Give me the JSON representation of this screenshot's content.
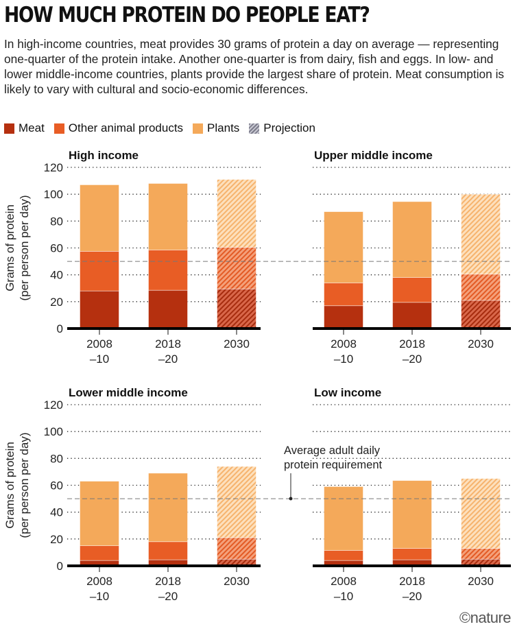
{
  "title": "HOW MUCH PROTEIN DO PEOPLE EAT?",
  "subtitle": "In high-income countries, meat provides 30 grams of protein a day on average — representing one-quarter of the protein intake. Another one-quarter is from dairy, fish and eggs. In low- and lower middle-income countries, plants provide the largest share of protein. Meat consumption is likely to vary with cultural and socio-economic differences.",
  "legend": [
    {
      "label": "Meat",
      "color": "#b5300f"
    },
    {
      "label": "Other animal products",
      "color": "#e85d25"
    },
    {
      "label": "Plants",
      "color": "#f4a95a"
    },
    {
      "label": "Projection",
      "color": "#9a9aa8"
    }
  ],
  "annotation": {
    "line1": "Average adult daily",
    "line2": "protein requirement",
    "value": 50
  },
  "credit": "©nature",
  "chart_data": [
    {
      "type": "bar",
      "stacked": true,
      "title": "High income",
      "ylabel": "Grams of protein",
      "ylabel2": "(per person per day)",
      "ylim": [
        0,
        120
      ],
      "yticks": [
        0,
        20,
        40,
        60,
        80,
        100,
        120
      ],
      "categories": [
        [
          "2008",
          "–10"
        ],
        [
          "2018",
          "–20"
        ],
        [
          "2030",
          ""
        ]
      ],
      "projection": [
        false,
        false,
        true
      ],
      "series": [
        {
          "name": "Meat",
          "values": [
            28,
            28.5,
            29.5
          ]
        },
        {
          "name": "Other animal products",
          "values": [
            29.5,
            30,
            31
          ]
        },
        {
          "name": "Plants",
          "values": [
            49.5,
            49.5,
            50.5
          ]
        }
      ]
    },
    {
      "type": "bar",
      "stacked": true,
      "title": "Upper middle income",
      "ylim": [
        0,
        120
      ],
      "categories": [
        [
          "2008",
          "–10"
        ],
        [
          "2018",
          "–20"
        ],
        [
          "2030",
          ""
        ]
      ],
      "projection": [
        false,
        false,
        true
      ],
      "series": [
        {
          "name": "Meat",
          "values": [
            17,
            19.5,
            21
          ]
        },
        {
          "name": "Other animal products",
          "values": [
            17,
            18.5,
            19.5
          ]
        },
        {
          "name": "Plants",
          "values": [
            53,
            56.5,
            59.5
          ]
        }
      ]
    },
    {
      "type": "bar",
      "stacked": true,
      "title": "Lower middle income",
      "ylabel": "Grams of protein",
      "ylabel2": "(per person per day)",
      "ylim": [
        0,
        120
      ],
      "yticks": [
        0,
        20,
        40,
        60,
        80,
        100,
        120
      ],
      "categories": [
        [
          "2008",
          "–10"
        ],
        [
          "2018",
          "–20"
        ],
        [
          "2030",
          ""
        ]
      ],
      "projection": [
        false,
        false,
        true
      ],
      "series": [
        {
          "name": "Meat",
          "values": [
            4,
            4.5,
            5
          ]
        },
        {
          "name": "Other animal products",
          "values": [
            11,
            13.5,
            16
          ]
        },
        {
          "name": "Plants",
          "values": [
            48,
            51,
            53
          ]
        }
      ]
    },
    {
      "type": "bar",
      "stacked": true,
      "title": "Low income",
      "ylim": [
        0,
        120
      ],
      "categories": [
        [
          "2008",
          "–10"
        ],
        [
          "2018",
          "–20"
        ],
        [
          "2030",
          ""
        ]
      ],
      "projection": [
        false,
        false,
        true
      ],
      "series": [
        {
          "name": "Meat",
          "values": [
            4,
            4.5,
            5
          ]
        },
        {
          "name": "Other animal products",
          "values": [
            7.5,
            8.5,
            8
          ]
        },
        {
          "name": "Plants",
          "values": [
            47.5,
            50.5,
            52
          ]
        }
      ]
    }
  ]
}
